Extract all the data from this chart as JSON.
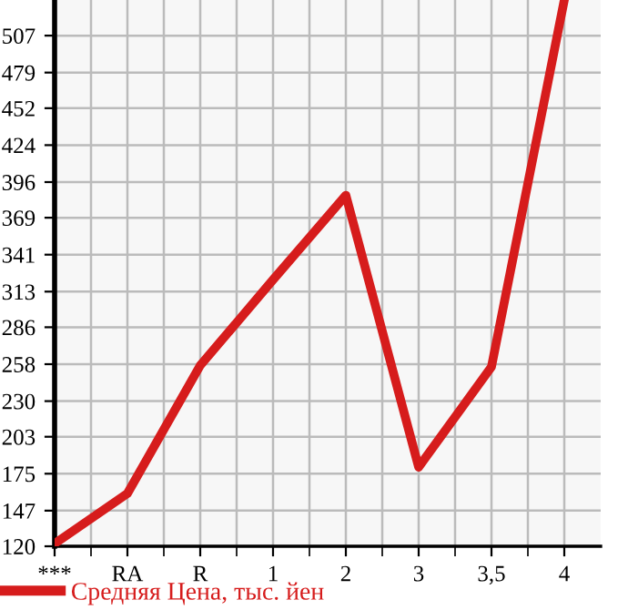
{
  "chart_data": {
    "type": "line",
    "categories": [
      "***",
      "RA",
      "R",
      "1",
      "2",
      "3",
      "3,5",
      "4"
    ],
    "series": [
      {
        "name": "Средняя Цена, тыс. йен",
        "color": "#d61c1c",
        "values": [
          122,
          160,
          257,
          322,
          386,
          180,
          256,
          534
        ]
      }
    ],
    "ylim": [
      120,
      534
    ],
    "yticks": [
      120,
      147,
      175,
      203,
      230,
      258,
      286,
      313,
      341,
      369,
      396,
      424,
      452,
      479,
      507
    ],
    "grid": true,
    "legend": "bottom",
    "marker": "none",
    "line_style": "solid"
  }
}
